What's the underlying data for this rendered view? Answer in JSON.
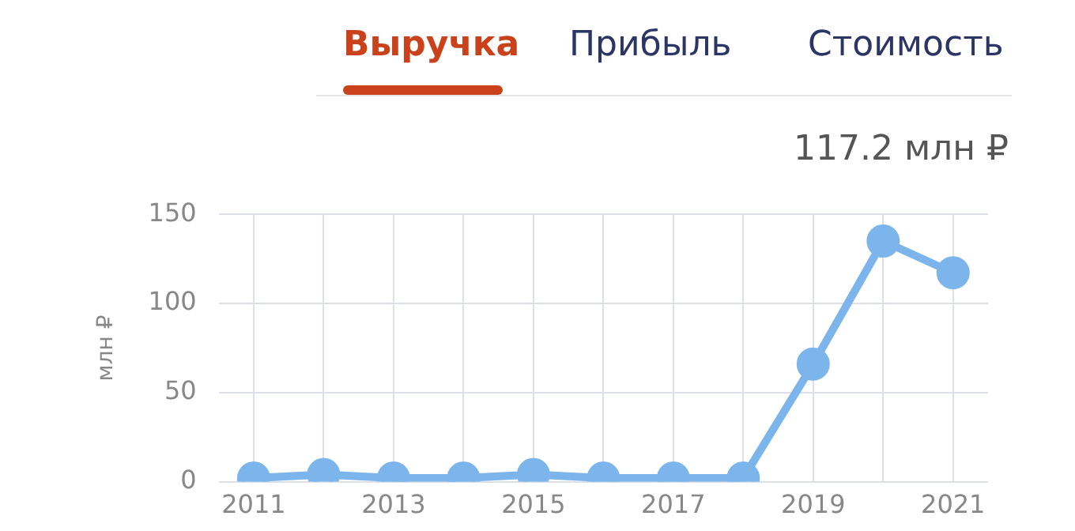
{
  "chart_data": {
    "type": "line",
    "ylabel": "млн ₽",
    "annotations": [
      "Выручка",
      "Прибыль",
      "Стоимость",
      "117.2 млн ₽"
    ],
    "x": [
      2011,
      2012,
      2013,
      2014,
      2015,
      2016,
      2017,
      2018,
      2019,
      2020,
      2021
    ],
    "series": [
      {
        "color": "#7cb5ec",
        "values": [
          2,
          4,
          2,
          2,
          4,
          2,
          2,
          2,
          66,
          135,
          117.2
        ]
      }
    ],
    "xlim": [
      2010.5,
      2021.5
    ],
    "xticks": [
      2011,
      {
        "value": 2012,
        "label": null
      },
      2013,
      {
        "value": 2014,
        "label": null
      },
      2015,
      {
        "value": 2016,
        "label": null
      },
      2017,
      {
        "value": 2018,
        "label": null
      },
      2019,
      {
        "value": 2020,
        "label": null
      },
      2021
    ],
    "ylim": [
      0,
      150
    ],
    "yticks": [
      0,
      50,
      100,
      150
    ],
    "grid": true,
    "legend": false,
    "marker": "circle",
    "line_style": "solid"
  }
}
